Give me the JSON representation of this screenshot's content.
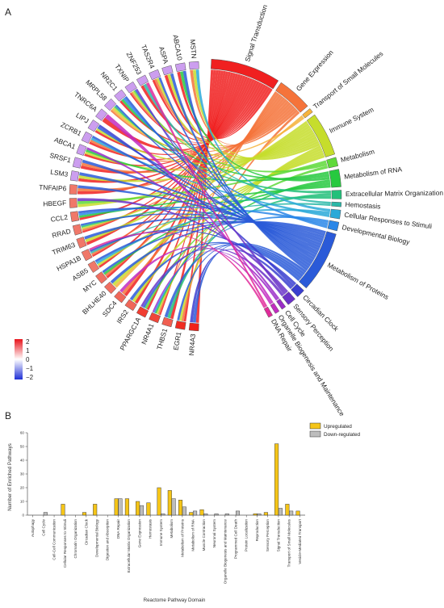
{
  "panels": {
    "a": "A",
    "b": "B"
  },
  "colorbar": {
    "ticks": [
      "2",
      "1",
      "0",
      "−1",
      "−2"
    ]
  },
  "chart_data": [
    {
      "type": "chord",
      "genes": [
        {
          "name": "NR4A3",
          "value": 2.0
        },
        {
          "name": "EGR1",
          "value": 1.9
        },
        {
          "name": "THBS1",
          "value": 1.3
        },
        {
          "name": "NR4A1",
          "value": 1.6
        },
        {
          "name": "PPARGC1A",
          "value": 1.7
        },
        {
          "name": "IRS2",
          "value": 1.2
        },
        {
          "name": "SDC4",
          "value": 1.2
        },
        {
          "name": "BHLHE40",
          "value": 1.1
        },
        {
          "name": "MYC",
          "value": 1.1
        },
        {
          "name": "ASB5",
          "value": 1.0
        },
        {
          "name": "HSPA1B",
          "value": 1.0
        },
        {
          "name": "TRIM63",
          "value": 1.0
        },
        {
          "name": "RRAD",
          "value": 1.0
        },
        {
          "name": "CCL2",
          "value": 1.0
        },
        {
          "name": "HBEGF",
          "value": 1.0
        },
        {
          "name": "TNFAIP6",
          "value": 1.0
        },
        {
          "name": "LSM3",
          "value": -0.6
        },
        {
          "name": "SRSF1",
          "value": -0.6
        },
        {
          "name": "ABCA1",
          "value": -0.6
        },
        {
          "name": "ZCRB1",
          "value": -0.6
        },
        {
          "name": "LIPJ",
          "value": -0.6
        },
        {
          "name": "TNRC6A",
          "value": -0.6
        },
        {
          "name": "MRPL58",
          "value": -0.6
        },
        {
          "name": "NR2C1",
          "value": -0.6
        },
        {
          "name": "TXNIP",
          "value": -0.6
        },
        {
          "name": "ZNF253",
          "value": -0.6
        },
        {
          "name": "TAS2R4",
          "value": -0.6
        },
        {
          "name": "ASPA",
          "value": -0.6
        },
        {
          "name": "ABCA10",
          "value": -0.6
        },
        {
          "name": "MSTN",
          "value": -0.6
        }
      ],
      "pathways": [
        {
          "name": "Signal Transduction",
          "color": "#f02020",
          "weight": 16
        },
        {
          "name": "Gene Expression",
          "color": "#f5733a",
          "weight": 8
        },
        {
          "name": "Transport of Small Molecules",
          "color": "#f6b33c",
          "weight": 1
        },
        {
          "name": "Immune System",
          "color": "#c6dd2c",
          "weight": 10
        },
        {
          "name": "Metabolism",
          "color": "#5ed93a",
          "weight": 2
        },
        {
          "name": "Metabolism of RNA",
          "color": "#27c93f",
          "weight": 4
        },
        {
          "name": "Extracellular Matrix Organization",
          "color": "#22c07a",
          "weight": 2
        },
        {
          "name": "Hemostasis",
          "color": "#2ab8a8",
          "weight": 1
        },
        {
          "name": "Cellular Responses to Stimuli",
          "color": "#2aa9d8",
          "weight": 2
        },
        {
          "name": "Developmental Biology",
          "color": "#2a87e8",
          "weight": 2
        },
        {
          "name": "Metabolism of Proteins",
          "color": "#2a5ad8",
          "weight": 14
        },
        {
          "name": "Circadian Clock",
          "color": "#3a3ed0",
          "weight": 2
        },
        {
          "name": "Sensory Perception",
          "color": "#6a32c8",
          "weight": 2
        },
        {
          "name": "Cell Cycle",
          "color": "#9a2cc8",
          "weight": 1
        },
        {
          "name": "Organelle Biogenesis and Maintenance",
          "color": "#c22cc0",
          "weight": 1
        },
        {
          "name": "DNA Repair",
          "color": "#e02a9a",
          "weight": 1
        }
      ]
    },
    {
      "type": "bar",
      "xlabel": "Reactome Pathway Domain",
      "ylabel": "Number of Enriched Pathways",
      "ylim": [
        0,
        60
      ],
      "yticks": [
        0,
        10,
        20,
        30,
        40,
        50,
        60
      ],
      "legend_position": "top-right",
      "categories": [
        "Autophagy",
        "Cell Cycle",
        "Cell-Cell Communication",
        "Cellular Responses to Stimuli",
        "Chromatin Organization",
        "Circadian Clock",
        "Developmental Biology",
        "Digestion and Absorption",
        "DNA Repair",
        "Extracellular Matrix Organization",
        "Gene Expression",
        "Hemostasis",
        "Immune System",
        "Metabolism",
        "Metabolism of Proteins",
        "Metabolism of RNA",
        "Muscle Contraction",
        "Neuronal System",
        "Organelle Biogenesis and Maintenance",
        "Programmed Cell Death",
        "Protein Localization",
        "Reproduction",
        "Sensory Perception",
        "Signal Transduction",
        "Transport of Small Molecules",
        "Vesicle-Mediated Transport"
      ],
      "series": [
        {
          "name": "Upregulated",
          "color": "#f5c518",
          "values": [
            0,
            0,
            0,
            8,
            0,
            2,
            8,
            0,
            12,
            12,
            10,
            9,
            20,
            18,
            11,
            2,
            4,
            0,
            0,
            0,
            0,
            1,
            2,
            52,
            8,
            3
          ]
        },
        {
          "name": "Down-regulated",
          "color": "#bdbdbd",
          "values": [
            0,
            2,
            0,
            0,
            0,
            0,
            0,
            0,
            12,
            0,
            7,
            0,
            1,
            12,
            6,
            3,
            1,
            1,
            1,
            3,
            0,
            1,
            0,
            5,
            3,
            0
          ]
        }
      ]
    }
  ]
}
